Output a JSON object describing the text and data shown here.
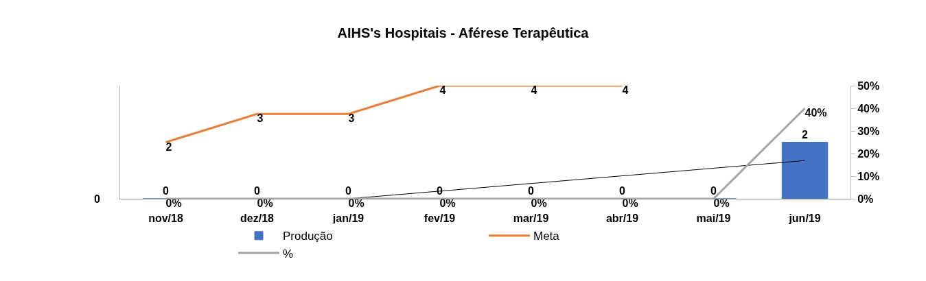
{
  "chart_data": {
    "type": "bar",
    "title": "AIHS's Hospitais - Aférese Terapêutica",
    "categories": [
      "nov/18",
      "dez/18",
      "jan/19",
      "fev/19",
      "mar/19",
      "abr/19",
      "mai/19",
      "jun/19"
    ],
    "series": [
      {
        "name": "Produção",
        "color": "#4472c4",
        "values": [
          0,
          0,
          0,
          0,
          0,
          0,
          0,
          2
        ],
        "value_labels": [
          "0",
          "0",
          "0",
          "0",
          "0",
          "0",
          "0",
          "2"
        ]
      },
      {
        "name": "Meta",
        "type": "line",
        "color": "#ed7d31",
        "values": [
          2,
          3,
          3,
          4,
          4,
          4,
          null,
          null
        ],
        "value_labels": [
          "2",
          "3",
          "3",
          "4",
          "4",
          "4",
          null,
          null
        ]
      },
      {
        "name": "%",
        "type": "line",
        "axis": "y2",
        "color": "#a5a5a5",
        "values": [
          0,
          0,
          0,
          0,
          0,
          0,
          0,
          40
        ],
        "value_labels": [
          "0%",
          "0%",
          "0%",
          "0%",
          "0%",
          "0%",
          "0%",
          "40%"
        ]
      },
      {
        "type": "line",
        "color": "#000000",
        "x": [
          "jan/19",
          "jun/19"
        ],
        "values": [
          0,
          1.35
        ]
      }
    ],
    "ylim": [
      0,
      4
    ],
    "annotations": [
      "0"
    ],
    "y2lim": [
      0,
      50
    ],
    "y2ticks": [
      {
        "value": 0,
        "label": "0%"
      },
      {
        "value": 10,
        "label": "10%"
      },
      {
        "value": 20,
        "label": "20%"
      },
      {
        "value": 30,
        "label": "30%"
      },
      {
        "value": 40,
        "label": "40%"
      },
      {
        "value": 50,
        "label": "50%"
      }
    ],
    "legend": "bottom",
    "marker": "none",
    "line_style": "solid"
  }
}
